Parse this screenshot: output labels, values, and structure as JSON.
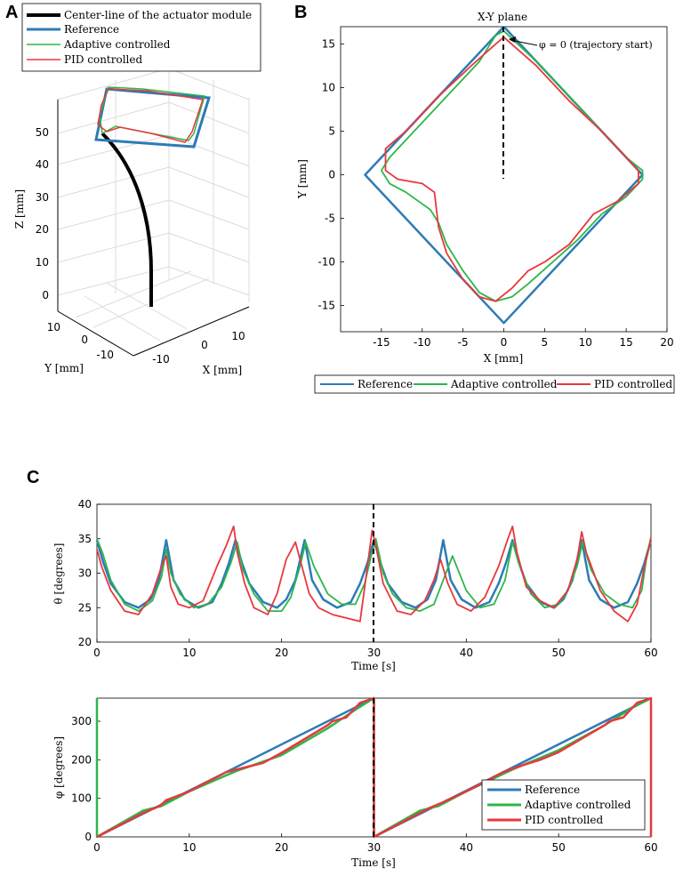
{
  "panels": {
    "a": "A",
    "b": "B",
    "c": "C"
  },
  "colors": {
    "reference": "#2e7bb5",
    "adaptive": "#2db64a",
    "pid": "#e8383d",
    "centerline": "#000000",
    "marker": "#000000"
  },
  "chart_data": [
    {
      "type": "line3d",
      "panel": "A",
      "xlabel": "X [mm]",
      "ylabel": "Y [mm]",
      "zlabel": "Z [mm]",
      "xticks": [
        "-10",
        "0",
        "10"
      ],
      "yticks": [
        "10",
        "0",
        "-10"
      ],
      "zticks": [
        "0",
        "10",
        "20",
        "30",
        "40",
        "50"
      ],
      "zlim": [
        0,
        55
      ],
      "legend": [
        "Center-line of the actuator module",
        "Reference",
        "Adaptive controlled",
        "PID controlled"
      ]
    },
    {
      "type": "line",
      "panel": "B",
      "title": "X-Y plane",
      "xlabel": "X [mm]",
      "ylabel": "Y [mm]",
      "xlim": [
        -20,
        20
      ],
      "ylim": [
        -18,
        17
      ],
      "xticks": [
        "-15",
        "-10",
        "-5",
        "0",
        "5",
        "10",
        "15",
        "20"
      ],
      "yticks": [
        "15",
        "10",
        "5",
        "0",
        "-5",
        "-10",
        "-15"
      ],
      "annotation": "φ = 0 (trajectory start)",
      "legend": [
        "Reference",
        "Adaptive controlled",
        "PID controlled"
      ],
      "series": [
        {
          "name": "Reference",
          "points": [
            [
              0,
              17
            ],
            [
              17,
              0
            ],
            [
              0,
              -17
            ],
            [
              -17,
              0
            ],
            [
              0,
              17
            ]
          ]
        },
        {
          "name": "Adaptive controlled",
          "points": [
            [
              0,
              16.5
            ],
            [
              4,
              13
            ],
            [
              8,
              9
            ],
            [
              12,
              5
            ],
            [
              15,
              2
            ],
            [
              17,
              0.5
            ],
            [
              17,
              -0.5
            ],
            [
              15,
              -2.5
            ],
            [
              12,
              -4.5
            ],
            [
              9,
              -7.5
            ],
            [
              6,
              -10
            ],
            [
              3,
              -12.5
            ],
            [
              1,
              -14
            ],
            [
              -1,
              -14.5
            ],
            [
              -3,
              -13.5
            ],
            [
              -5,
              -11
            ],
            [
              -7,
              -8
            ],
            [
              -8,
              -5.5
            ],
            [
              -9,
              -4
            ],
            [
              -12,
              -2
            ],
            [
              -14,
              -1
            ],
            [
              -15,
              0.5
            ],
            [
              -14,
              2
            ],
            [
              -11,
              5
            ],
            [
              -7,
              9
            ],
            [
              -3,
              13
            ],
            [
              -1,
              16
            ],
            [
              0,
              16.5
            ]
          ]
        },
        {
          "name": "PID controlled",
          "points": [
            [
              0,
              15.8
            ],
            [
              4,
              12.5
            ],
            [
              8,
              8.5
            ],
            [
              12,
              5
            ],
            [
              15,
              2
            ],
            [
              16.5,
              0.5
            ],
            [
              16.5,
              -1
            ],
            [
              14,
              -3
            ],
            [
              11,
              -4.5
            ],
            [
              8,
              -8
            ],
            [
              5,
              -10
            ],
            [
              3,
              -11
            ],
            [
              1,
              -13
            ],
            [
              -1,
              -14.5
            ],
            [
              -3,
              -14
            ],
            [
              -5,
              -12
            ],
            [
              -7,
              -9
            ],
            [
              -8,
              -6
            ],
            [
              -8.5,
              -2
            ],
            [
              -10,
              -1
            ],
            [
              -13,
              -0.5
            ],
            [
              -14.5,
              0.5
            ],
            [
              -14.5,
              3
            ],
            [
              -12,
              5
            ],
            [
              -8,
              9
            ],
            [
              -4,
              12.5
            ],
            [
              -1,
              15
            ],
            [
              0,
              15.8
            ]
          ]
        }
      ]
    },
    {
      "type": "line",
      "panel": "C-top",
      "xlabel": "Time [s]",
      "ylabel": "θ [degrees]",
      "xlim": [
        0,
        60
      ],
      "ylim": [
        20,
        40
      ],
      "xticks": [
        "0",
        "10",
        "20",
        "30",
        "40",
        "50",
        "60"
      ],
      "yticks": [
        "40",
        "35",
        "30",
        "25",
        "20"
      ],
      "series": [
        {
          "name": "Reference",
          "x": [
            0,
            0.7,
            1.5,
            3,
            4.5,
            5.8,
            6.7,
            7.5,
            8.3,
            9.5,
            11,
            12.5,
            13.5,
            14.3,
            15,
            15.7,
            16.5,
            18,
            19.5,
            20.5,
            21.5,
            22.5,
            23.3,
            24.5,
            26,
            27.5,
            28.5,
            29.3,
            30,
            30.7,
            31.5,
            33,
            34.5,
            35.8,
            36.7,
            37.5,
            38.3,
            39.5,
            41,
            42.5,
            43.5,
            44.3,
            45,
            45.7,
            46.5,
            48,
            49.5,
            50.5,
            51.5,
            52.5,
            53.3,
            54.5,
            56,
            57.5,
            58.5,
            59.3,
            60
          ],
          "values": [
            34.8,
            31.5,
            28.5,
            25.8,
            25,
            26.2,
            29,
            34.8,
            29,
            26.2,
            25,
            25.8,
            28.5,
            31.5,
            34.8,
            31.5,
            28.5,
            25.8,
            25,
            26.2,
            29,
            34.8,
            29,
            26.2,
            25,
            25.8,
            28.5,
            31.5,
            34.8,
            31.5,
            28.5,
            25.8,
            25,
            26.2,
            29,
            34.8,
            29,
            26.2,
            25,
            25.8,
            28.5,
            31.5,
            34.8,
            31.5,
            28.5,
            25.8,
            25,
            26.2,
            29,
            34.8,
            29,
            26.2,
            25,
            25.8,
            28.5,
            31.5,
            34.8
          ]
        },
        {
          "name": "Adaptive controlled",
          "x": [
            0,
            0.6,
            1.5,
            3,
            4.5,
            6,
            7,
            7.5,
            8,
            9,
            10.5,
            12,
            13.5,
            14.5,
            15.2,
            15.8,
            17,
            18.5,
            20,
            21,
            22,
            22.6,
            23.5,
            25,
            26.5,
            28,
            29,
            29.7,
            30.2,
            31,
            32,
            33.5,
            35,
            36.5,
            37.5,
            38.5,
            40,
            41.5,
            43,
            44.2,
            45,
            45.8,
            47,
            48.5,
            50,
            51,
            52,
            52.6,
            53.5,
            55,
            56.5,
            58,
            59,
            59.5,
            60
          ],
          "values": [
            35,
            33,
            29,
            25.5,
            24.5,
            26,
            29.5,
            33.5,
            30,
            27,
            25,
            25.5,
            28,
            31.5,
            34.5,
            30.5,
            27,
            24.5,
            24.5,
            26.5,
            31,
            34.5,
            31,
            27,
            25.5,
            25.5,
            28.5,
            32.5,
            35,
            30,
            27,
            25,
            24.5,
            25.5,
            29,
            32.5,
            27.5,
            25,
            25.5,
            29,
            34.5,
            31,
            27,
            25,
            25.5,
            27.5,
            31,
            34.5,
            30.5,
            27,
            25.5,
            25,
            27.5,
            32,
            34.8
          ]
        },
        {
          "name": "PID controlled",
          "x": [
            0,
            0.5,
            1.5,
            3,
            4.5,
            6,
            7,
            7.5,
            8,
            8.8,
            10,
            11.5,
            13,
            14,
            14.8,
            15.2,
            16,
            17,
            18.5,
            19.5,
            20.5,
            21.5,
            22.3,
            23,
            24,
            25.5,
            27,
            28.5,
            29.3,
            29.8,
            30.2,
            31,
            32.5,
            34,
            35.5,
            36.5,
            37.2,
            38,
            39,
            40.5,
            42,
            43.5,
            44.5,
            45,
            45.5,
            46.5,
            48,
            49.5,
            51,
            52,
            52.5,
            53,
            54.5,
            56,
            57.5,
            58.5,
            59.3,
            60
          ],
          "values": [
            33.5,
            31,
            27.5,
            24.5,
            24,
            27,
            31,
            32.5,
            28,
            25.5,
            25,
            26,
            31,
            34,
            36.8,
            33,
            28.5,
            25,
            24,
            27,
            32,
            34.5,
            30.5,
            27,
            25,
            24,
            23.5,
            23,
            31,
            36.2,
            34,
            28.5,
            24.5,
            24,
            26,
            29,
            32,
            28.5,
            25.5,
            24.5,
            26.5,
            31,
            35,
            36.8,
            33,
            28,
            26,
            25,
            27.5,
            32,
            36,
            33,
            27.5,
            24.5,
            23,
            25.5,
            31,
            35.2
          ]
        }
      ]
    },
    {
      "type": "line",
      "panel": "C-bottom",
      "xlabel": "Time [s]",
      "ylabel": "φ [degrees]",
      "xlim": [
        0,
        60
      ],
      "ylim": [
        0,
        360
      ],
      "xticks": [
        "0",
        "10",
        "20",
        "30",
        "40",
        "50",
        "60"
      ],
      "yticks": [
        "300",
        "200",
        "100",
        "0"
      ],
      "legend": [
        "Reference",
        "Adaptive controlled",
        "PID controlled"
      ],
      "series": [
        {
          "name": "Reference",
          "x": [
            0,
            30,
            30,
            60
          ],
          "values": [
            0,
            360,
            0,
            360
          ]
        },
        {
          "name": "Adaptive controlled",
          "x": [
            0,
            0,
            0,
            5,
            7,
            10,
            15,
            20,
            25,
            28,
            30,
            30,
            35,
            37,
            40,
            45,
            50,
            55,
            58,
            60
          ],
          "values": [
            360,
            0,
            0,
            68,
            80,
            118,
            170,
            212,
            282,
            330,
            360,
            0,
            68,
            80,
            118,
            175,
            225,
            290,
            335,
            360
          ]
        },
        {
          "name": "PID controlled",
          "x": [
            0,
            5,
            6.8,
            7.5,
            10,
            14,
            16,
            18,
            20,
            25,
            25.5,
            27,
            28.5,
            30,
            30,
            35,
            36,
            37.5,
            40,
            44,
            46,
            48,
            50,
            55,
            55.5,
            57,
            58.5,
            60,
            60
          ],
          "values": [
            0,
            62,
            80,
            95,
            118,
            168,
            180,
            192,
            218,
            290,
            300,
            310,
            348,
            360,
            0,
            62,
            75,
            90,
            118,
            168,
            185,
            200,
            220,
            290,
            300,
            310,
            348,
            360,
            0
          ]
        }
      ]
    }
  ]
}
